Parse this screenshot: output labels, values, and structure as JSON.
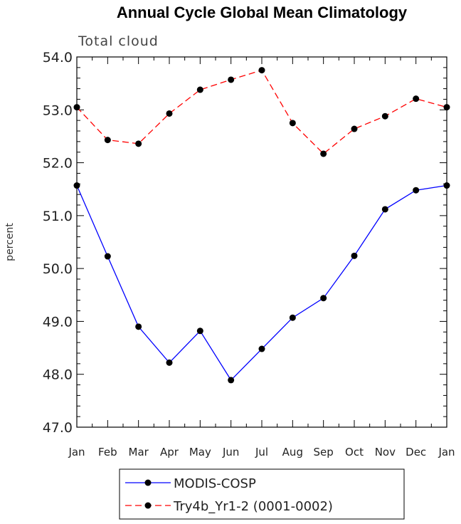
{
  "chart_data": {
    "type": "line",
    "title": "Annual Cycle Global Mean Climatology",
    "subtitle": "Total cloud",
    "xlabel": "",
    "ylabel": "percent",
    "ylim": [
      47.0,
      54.0
    ],
    "yticks": [
      "47.0",
      "48.0",
      "49.0",
      "50.0",
      "51.0",
      "52.0",
      "53.0",
      "54.0"
    ],
    "categories": [
      "Jan",
      "Feb",
      "Mar",
      "Apr",
      "May",
      "Jun",
      "Jul",
      "Aug",
      "Sep",
      "Oct",
      "Nov",
      "Dec",
      "Jan"
    ],
    "series": [
      {
        "name": "MODIS-COSP",
        "color": "#0000ff",
        "dash": "solid",
        "values": [
          51.57,
          50.23,
          48.9,
          48.22,
          48.82,
          47.89,
          48.48,
          49.07,
          49.44,
          50.24,
          51.12,
          51.48,
          51.57
        ]
      },
      {
        "name": "Try4b_Yr1-2 (0001-0002)",
        "color": "#ff0000",
        "dash": "dashed",
        "values": [
          53.05,
          52.43,
          52.36,
          52.93,
          53.38,
          53.57,
          53.75,
          52.75,
          52.17,
          52.64,
          52.88,
          53.21,
          53.05
        ]
      }
    ],
    "legend": "bottom-center"
  }
}
